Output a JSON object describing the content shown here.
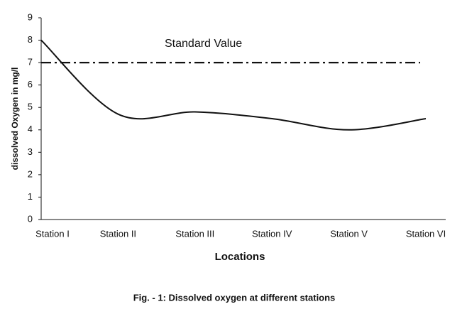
{
  "chart_data": {
    "type": "line",
    "xlabel": "Locations",
    "ylabel": "dissolved Oxygen in mg/l",
    "caption": "Fig. - 1: Dissolved oxygen at different stations",
    "categories": [
      "Station  I",
      "Station  II",
      "Station  III",
      "Station  IV",
      "Station  V",
      "Station  VI"
    ],
    "series": [
      {
        "name": "Dissolved oxygen",
        "color": "#111111",
        "values": [
          8.0,
          4.7,
          4.8,
          4.5,
          4.0,
          4.5
        ]
      }
    ],
    "reference": {
      "value": 7,
      "label": "Standard Value",
      "color": "#111111"
    },
    "ylim": [
      0,
      9
    ],
    "yticks": [
      0,
      1,
      2,
      3,
      4,
      5,
      6,
      7,
      8,
      9
    ],
    "grid": false
  }
}
